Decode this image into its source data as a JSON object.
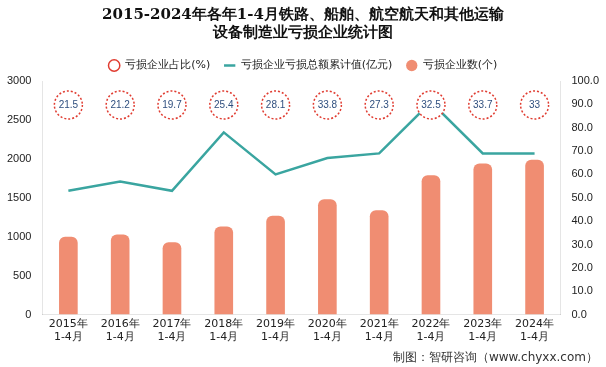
{
  "chart_data": {
    "type": "bar",
    "title": [
      "2015-2024年各年1-4月铁路、船舶、航空航天和其他运输",
      "设备制造业亏损企业统计图"
    ],
    "categories": [
      "2015年\n1-4月",
      "2016年\n1-4月",
      "2017年\n1-4月",
      "2018年\n1-4月",
      "2019年\n1-4月",
      "2020年\n1-4月",
      "2021年\n1-4月",
      "2022年\n1-4月",
      "2023年\n1-4月",
      "2024年\n1-4月"
    ],
    "series": [
      {
        "name": "亏损企业数(个)",
        "type": "bar",
        "color": "#f08d72",
        "values": [
          1000,
          1030,
          930,
          1130,
          1270,
          1480,
          1340,
          1790,
          1940,
          1990
        ]
      },
      {
        "name": "亏损企业占比(%)",
        "type": "scatter",
        "marker": "circle",
        "line_style": "dotted",
        "color": "#e03c31",
        "data_labels": true,
        "values": [
          21.5,
          21.2,
          19.7,
          25.4,
          28.1,
          33.8,
          27.3,
          32.5,
          33.7,
          33.0
        ]
      },
      {
        "name": "亏损企业亏损总额累计值(亿元)",
        "type": "line",
        "axis": "y2",
        "color": "#3aa5a0",
        "values": [
          53,
          57,
          53,
          78,
          60,
          67,
          69,
          91,
          69,
          69
        ]
      }
    ],
    "ylim": [
      0,
      3000
    ],
    "yticks": [
      0,
      500,
      1000,
      1500,
      2000,
      2500,
      3000
    ],
    "y2lim": [
      0,
      100
    ],
    "y2ticks": [
      {
        "value": 0,
        "label": "0.0"
      },
      {
        "value": 10,
        "label": "10.0"
      },
      {
        "value": 20,
        "label": "20.0"
      },
      {
        "value": 30,
        "label": "30.0"
      },
      {
        "value": 40,
        "label": "40.0"
      },
      {
        "value": 50,
        "label": "50.0"
      },
      {
        "value": 60,
        "label": "60.0"
      },
      {
        "value": 70,
        "label": "70.0"
      },
      {
        "value": 80,
        "label": "80.0"
      },
      {
        "value": 90,
        "label": "90.0"
      },
      {
        "value": 100,
        "label": "100.0"
      }
    ],
    "grid": false,
    "legend": "top",
    "annotations": [
      "制图：智研咨询（www.chyxx.com）"
    ]
  }
}
